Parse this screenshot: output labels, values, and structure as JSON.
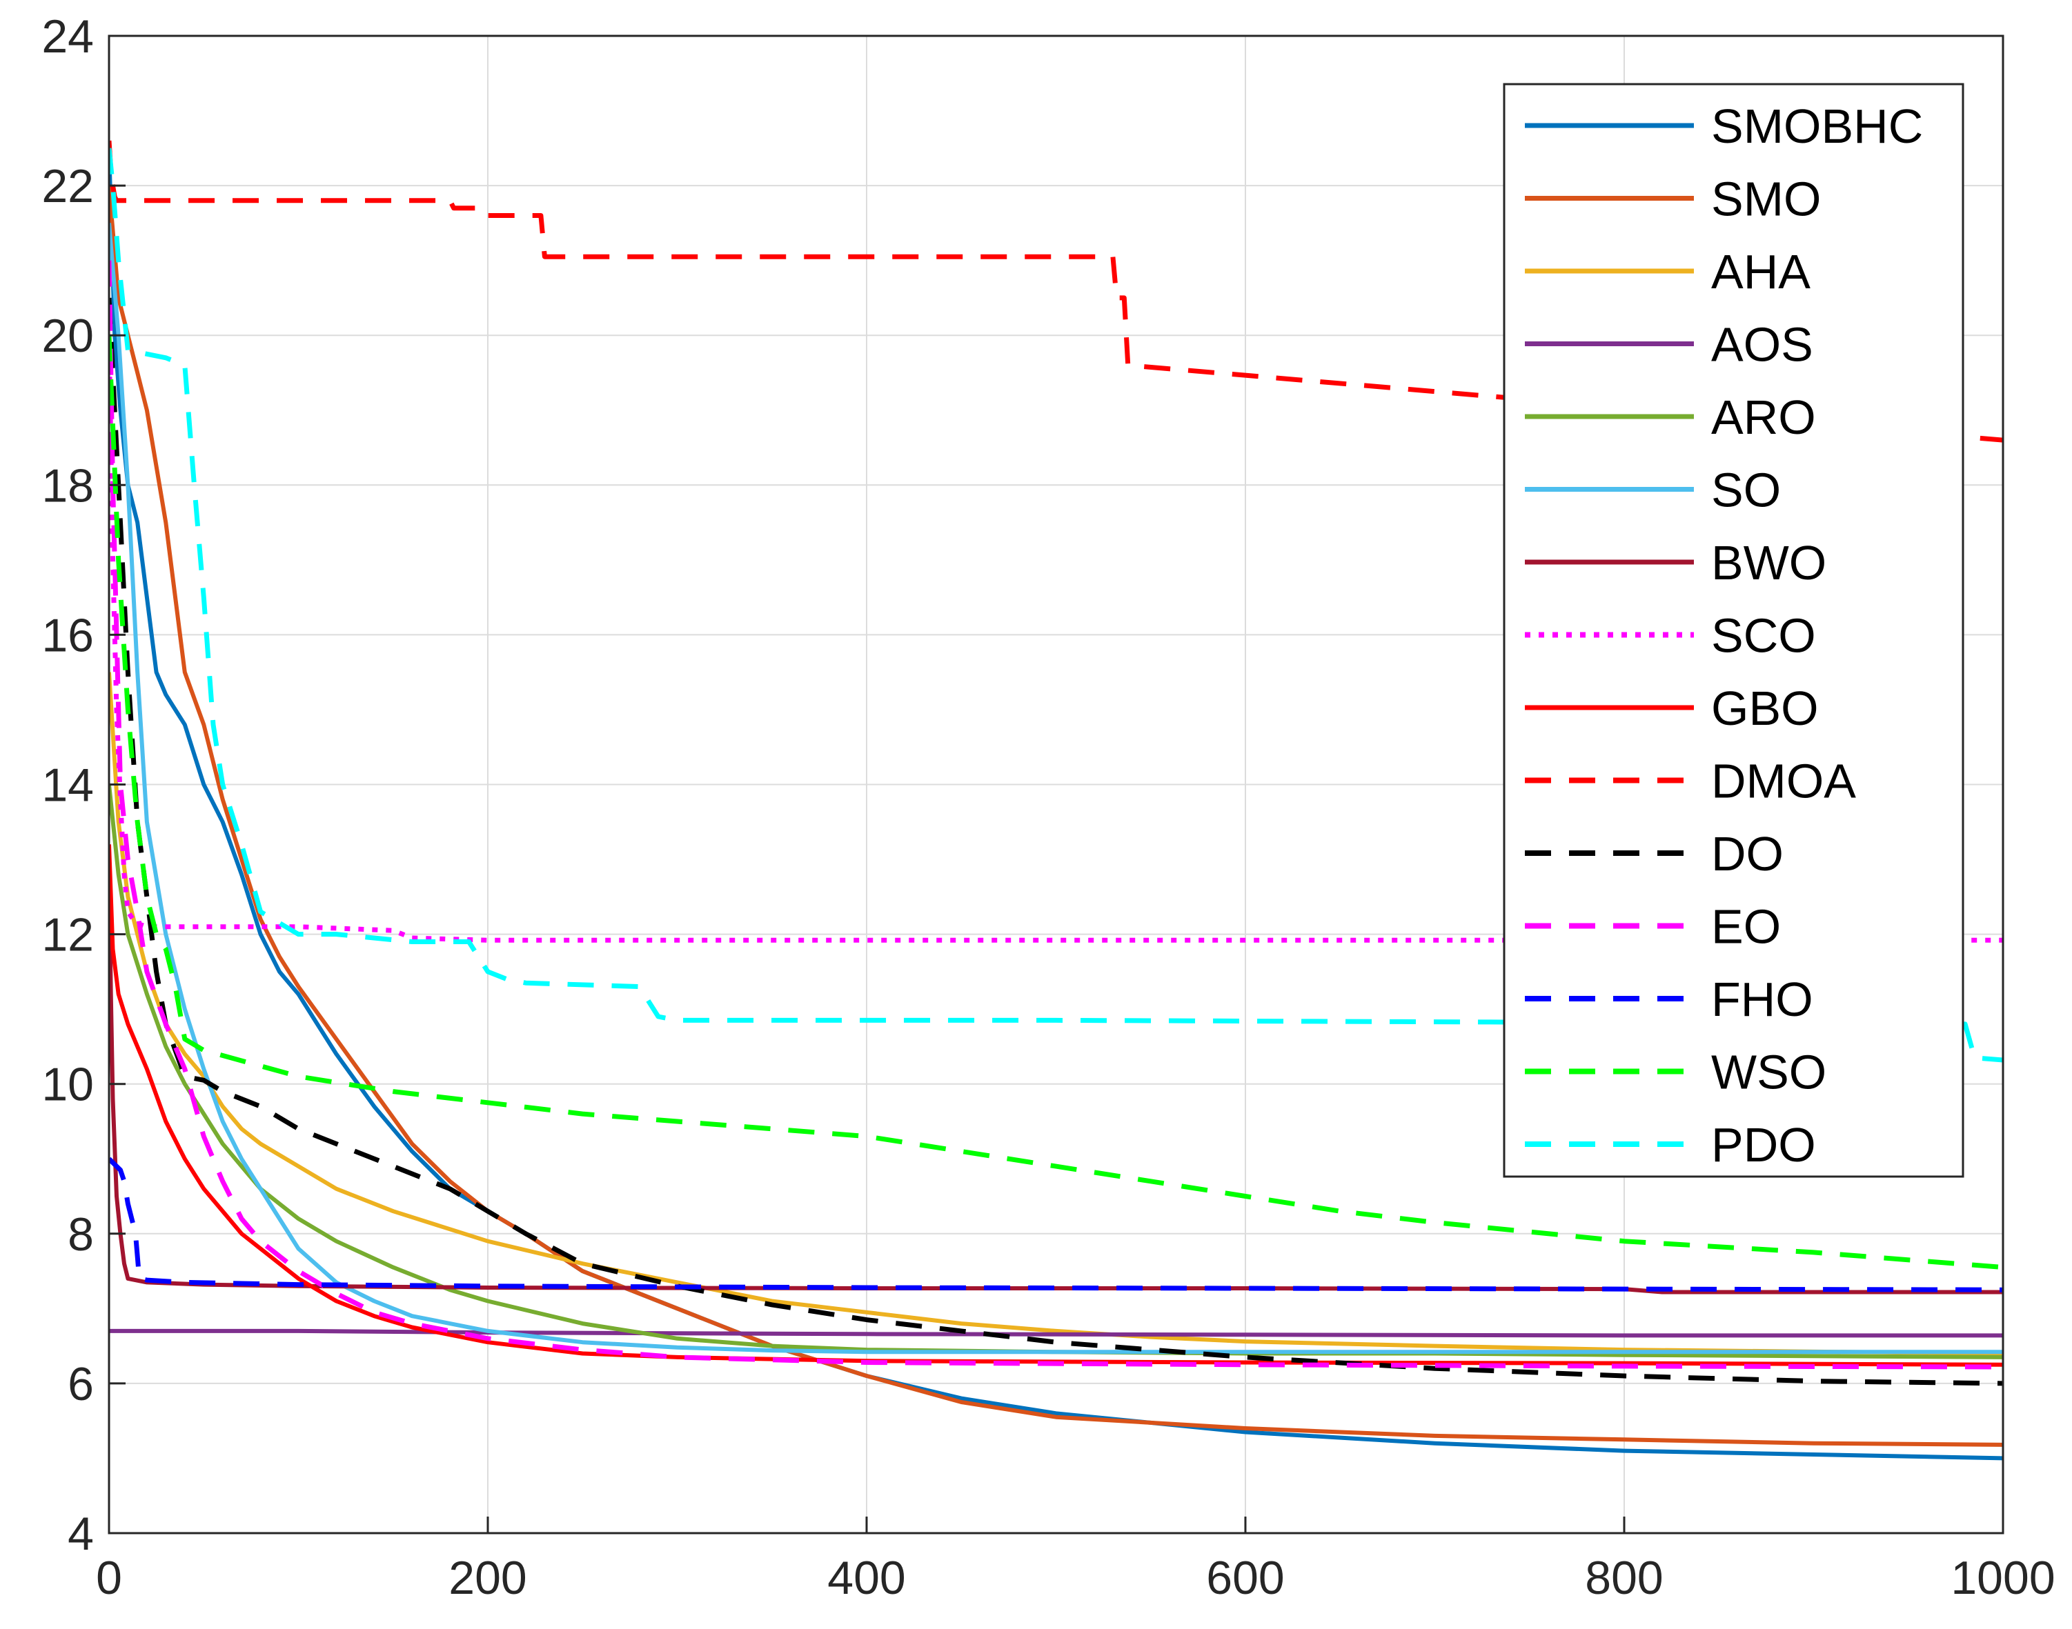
{
  "chart_data": {
    "type": "line",
    "title": "",
    "xlabel": "",
    "ylabel": "",
    "xlim": [
      0,
      1000
    ],
    "ylim": [
      4,
      24
    ],
    "xticks": [
      0,
      200,
      400,
      600,
      800,
      1000
    ],
    "yticks": [
      4,
      6,
      8,
      10,
      12,
      14,
      16,
      18,
      20,
      22,
      24
    ],
    "xtick_labels": [
      "0",
      "200",
      "400",
      "600",
      "800",
      "1000"
    ],
    "ytick_labels": [
      "4",
      "6",
      "8",
      "10",
      "12",
      "14",
      "16",
      "18",
      "20",
      "22",
      "24"
    ],
    "grid": true,
    "legend_position": "top-right",
    "series": [
      {
        "name": "SMOBHC",
        "color": "#0072BD",
        "dash": "solid",
        "x": [
          0,
          3,
          6,
          10,
          15,
          20,
          25,
          30,
          40,
          50,
          60,
          70,
          80,
          90,
          100,
          110,
          120,
          140,
          160,
          180,
          200,
          220,
          250,
          300,
          350,
          400,
          450,
          500,
          600,
          700,
          800,
          900,
          1000
        ],
        "y": [
          22.5,
          20.0,
          19.0,
          18.0,
          17.5,
          16.5,
          15.5,
          15.2,
          14.8,
          14.0,
          13.5,
          12.8,
          12.0,
          11.5,
          11.2,
          10.8,
          10.4,
          9.7,
          9.1,
          8.6,
          8.3,
          8.0,
          7.5,
          7.0,
          6.5,
          6.1,
          5.8,
          5.6,
          5.35,
          5.2,
          5.1,
          5.05,
          5.0
        ]
      },
      {
        "name": "SMO",
        "color": "#D95319",
        "dash": "solid",
        "x": [
          0,
          5,
          10,
          15,
          20,
          30,
          40,
          50,
          60,
          70,
          80,
          90,
          100,
          120,
          140,
          160,
          180,
          200,
          220,
          250,
          300,
          350,
          400,
          450,
          500,
          600,
          700,
          800,
          900,
          1000
        ],
        "y": [
          22.0,
          20.5,
          20.0,
          19.5,
          19.0,
          17.5,
          15.5,
          14.8,
          13.8,
          13.0,
          12.2,
          11.7,
          11.3,
          10.6,
          9.9,
          9.2,
          8.7,
          8.3,
          8.0,
          7.5,
          7.0,
          6.5,
          6.1,
          5.75,
          5.55,
          5.4,
          5.3,
          5.25,
          5.2,
          5.18
        ]
      },
      {
        "name": "AHA",
        "color": "#EDB120",
        "dash": "solid",
        "x": [
          0,
          5,
          10,
          20,
          30,
          40,
          50,
          60,
          70,
          80,
          100,
          120,
          150,
          200,
          250,
          300,
          350,
          400,
          450,
          500,
          550,
          600,
          700,
          800,
          1000
        ],
        "y": [
          15.5,
          13.5,
          12.5,
          11.5,
          10.8,
          10.4,
          10.1,
          9.7,
          9.4,
          9.2,
          8.9,
          8.6,
          8.3,
          7.9,
          7.6,
          7.35,
          7.1,
          6.95,
          6.8,
          6.7,
          6.62,
          6.56,
          6.5,
          6.45,
          6.4
        ]
      },
      {
        "name": "AOS",
        "color": "#7E2F8E",
        "dash": "solid",
        "x": [
          0,
          100,
          200,
          400,
          600,
          800,
          1000
        ],
        "y": [
          6.7,
          6.7,
          6.68,
          6.66,
          6.65,
          6.64,
          6.64
        ]
      },
      {
        "name": "ARO",
        "color": "#77AC30",
        "dash": "solid",
        "x": [
          0,
          5,
          10,
          20,
          30,
          40,
          50,
          60,
          70,
          80,
          100,
          120,
          150,
          180,
          200,
          250,
          300,
          350,
          400,
          500,
          600,
          700,
          800,
          1000
        ],
        "y": [
          14.0,
          12.8,
          12.0,
          11.2,
          10.5,
          10.0,
          9.6,
          9.2,
          8.9,
          8.6,
          8.2,
          7.9,
          7.55,
          7.25,
          7.1,
          6.8,
          6.6,
          6.5,
          6.45,
          6.42,
          6.4,
          6.4,
          6.38,
          6.35
        ]
      },
      {
        "name": "SO",
        "color": "#4DBEEE",
        "dash": "solid",
        "x": [
          0,
          5,
          10,
          15,
          20,
          30,
          40,
          50,
          60,
          70,
          80,
          100,
          120,
          140,
          160,
          200,
          250,
          300,
          350,
          400,
          500,
          600,
          700,
          800,
          1000
        ],
        "y": [
          21.5,
          20.0,
          18.0,
          15.5,
          13.5,
          12.0,
          11.0,
          10.2,
          9.5,
          9.0,
          8.6,
          7.8,
          7.35,
          7.1,
          6.9,
          6.7,
          6.55,
          6.48,
          6.44,
          6.42,
          6.42,
          6.42,
          6.42,
          6.42,
          6.42
        ]
      },
      {
        "name": "BWO",
        "color": "#A2142F",
        "dash": "solid",
        "x": [
          0,
          1,
          2,
          4,
          6,
          8,
          10,
          20,
          50,
          100,
          200,
          400,
          600,
          800,
          820,
          1000
        ],
        "y": [
          13.0,
          11.2,
          9.8,
          8.5,
          8.0,
          7.6,
          7.4,
          7.35,
          7.32,
          7.3,
          7.28,
          7.27,
          7.27,
          7.26,
          7.22,
          7.22
        ]
      },
      {
        "name": "SCO",
        "color": "#FF00FF",
        "dash": "dotted",
        "x": [
          0,
          2,
          4,
          6,
          8,
          10,
          14,
          20,
          40,
          100,
          150,
          160,
          200,
          400,
          600,
          800,
          1000
        ],
        "y": [
          20.0,
          17.0,
          15.0,
          13.8,
          12.8,
          12.3,
          12.15,
          12.1,
          12.1,
          12.1,
          12.05,
          11.95,
          11.92,
          11.92,
          11.92,
          11.92,
          11.92
        ]
      },
      {
        "name": "GBO",
        "color": "#FF0000",
        "dash": "solid",
        "x": [
          0,
          2,
          5,
          10,
          20,
          30,
          40,
          50,
          60,
          70,
          80,
          100,
          120,
          140,
          160,
          200,
          250,
          300,
          400,
          600,
          800,
          1000
        ],
        "y": [
          13.2,
          11.8,
          11.2,
          10.8,
          10.2,
          9.5,
          9.0,
          8.6,
          8.3,
          8.0,
          7.8,
          7.4,
          7.1,
          6.9,
          6.75,
          6.55,
          6.4,
          6.35,
          6.3,
          6.28,
          6.27,
          6.25
        ]
      },
      {
        "name": "DMOA",
        "color": "#FF0000",
        "dash": "dashed",
        "x": [
          0,
          1,
          2,
          3,
          4,
          5,
          180,
          182,
          195,
          197,
          228,
          230,
          530,
          532,
          536,
          538,
          1000
        ],
        "y": [
          22.6,
          22.2,
          22.0,
          21.85,
          21.8,
          21.8,
          21.8,
          21.7,
          21.7,
          21.6,
          21.6,
          21.05,
          21.05,
          20.5,
          20.5,
          19.6,
          18.6
        ]
      },
      {
        "name": "DO",
        "color": "#000000",
        "dash": "dashed",
        "x": [
          0,
          3,
          6,
          10,
          15,
          20,
          25,
          30,
          40,
          50,
          60,
          80,
          100,
          120,
          150,
          180,
          200,
          220,
          250,
          300,
          350,
          400,
          500,
          600,
          700,
          800,
          900,
          1000
        ],
        "y": [
          20.5,
          19.0,
          17.5,
          15.5,
          13.5,
          12.5,
          11.5,
          10.8,
          10.1,
          10.05,
          9.9,
          9.7,
          9.4,
          9.2,
          8.9,
          8.6,
          8.3,
          8.0,
          7.6,
          7.3,
          7.05,
          6.85,
          6.55,
          6.35,
          6.2,
          6.1,
          6.03,
          6.0
        ]
      },
      {
        "name": "EO",
        "color": "#FF00FF",
        "dash": "dashed",
        "x": [
          0,
          2,
          4,
          6,
          10,
          15,
          20,
          30,
          40,
          50,
          60,
          70,
          80,
          100,
          120,
          140,
          160,
          200,
          250,
          300,
          400,
          600,
          800,
          1000
        ],
        "y": [
          21.0,
          18.0,
          16.0,
          14.0,
          13.0,
          12.3,
          11.5,
          10.8,
          10.2,
          9.3,
          8.7,
          8.2,
          7.9,
          7.5,
          7.2,
          6.95,
          6.8,
          6.6,
          6.45,
          6.35,
          6.28,
          6.25,
          6.23,
          6.22
        ]
      },
      {
        "name": "FHO",
        "color": "#0000FF",
        "dash": "dashed",
        "x": [
          0,
          2,
          4,
          6,
          8,
          10,
          12,
          14,
          16,
          20,
          40,
          100,
          200,
          400,
          600,
          800,
          1000
        ],
        "y": [
          9.0,
          8.95,
          8.9,
          8.85,
          8.7,
          8.4,
          8.2,
          8.0,
          7.4,
          7.38,
          7.35,
          7.32,
          7.3,
          7.28,
          7.27,
          7.26,
          7.25
        ]
      },
      {
        "name": "WSO",
        "color": "#00FF00",
        "dash": "dashed",
        "x": [
          0,
          5,
          10,
          15,
          20,
          25,
          30,
          35,
          40,
          50,
          100,
          150,
          200,
          250,
          300,
          350,
          400,
          450,
          500,
          550,
          600,
          650,
          700,
          800,
          900,
          1000
        ],
        "y": [
          20.0,
          17.0,
          15.0,
          13.5,
          12.5,
          12.0,
          11.8,
          11.3,
          10.6,
          10.45,
          10.1,
          9.9,
          9.75,
          9.6,
          9.5,
          9.4,
          9.3,
          9.1,
          8.9,
          8.7,
          8.5,
          8.3,
          8.15,
          7.9,
          7.75,
          7.55
        ]
      },
      {
        "name": "PDO",
        "color": "#00FFFF",
        "dash": "dashed",
        "x": [
          0,
          2,
          5,
          10,
          20,
          30,
          40,
          45,
          50,
          55,
          60,
          70,
          80,
          100,
          120,
          160,
          190,
          200,
          210,
          220,
          280,
          290,
          300,
          500,
          800,
          980,
          985,
          1000
        ],
        "y": [
          22.5,
          22.0,
          21.0,
          19.8,
          19.75,
          19.7,
          19.6,
          18.0,
          16.5,
          14.8,
          14.0,
          13.2,
          12.3,
          12.0,
          12.0,
          11.9,
          11.9,
          11.5,
          11.4,
          11.35,
          11.3,
          10.9,
          10.85,
          10.85,
          10.82,
          10.8,
          10.35,
          10.32
        ]
      }
    ]
  }
}
